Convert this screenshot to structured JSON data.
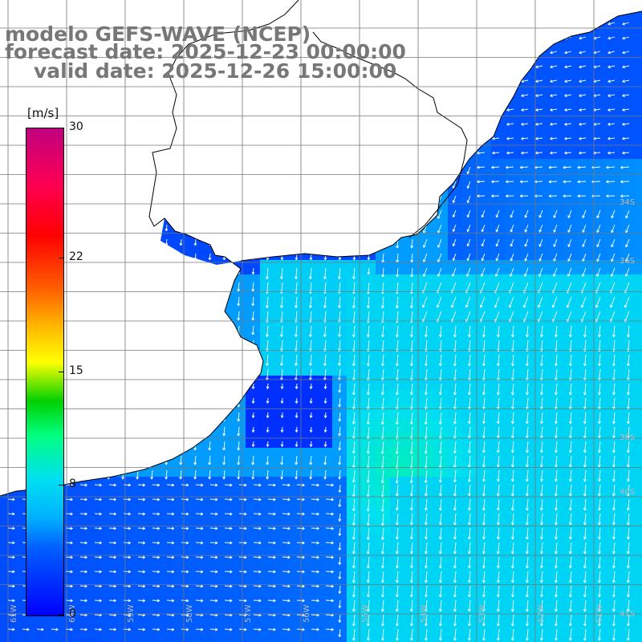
{
  "title": {
    "line1": "modelo GEFS-WAVE (NCEP)",
    "line2": "forecast date: 2025-12-23 00:00:00",
    "line3": "valid date: 2025-12-26 15:00:00"
  },
  "colorbar": {
    "unit": "[m/s]",
    "ticks": [
      {
        "value": 30,
        "label": "30"
      },
      {
        "value": 22,
        "label": "22"
      },
      {
        "value": 15,
        "label": "15"
      },
      {
        "value": 8,
        "label": "8"
      },
      {
        "value": 0,
        "label": "0"
      }
    ],
    "min": 0,
    "max": 30
  },
  "map": {
    "variable": "wind speed and direction",
    "lat_labels": [
      "34S",
      "36S",
      "38S",
      "40S",
      "41S"
    ],
    "lon_labels": [
      "61W",
      "60W",
      "59W",
      "58W",
      "57W",
      "56W",
      "55W",
      "54W",
      "53W",
      "52W",
      "51W"
    ],
    "colors": {
      "land": "#ffffff",
      "coast": "#000000",
      "grid": "#777777",
      "arrow": "#ffffff"
    }
  }
}
